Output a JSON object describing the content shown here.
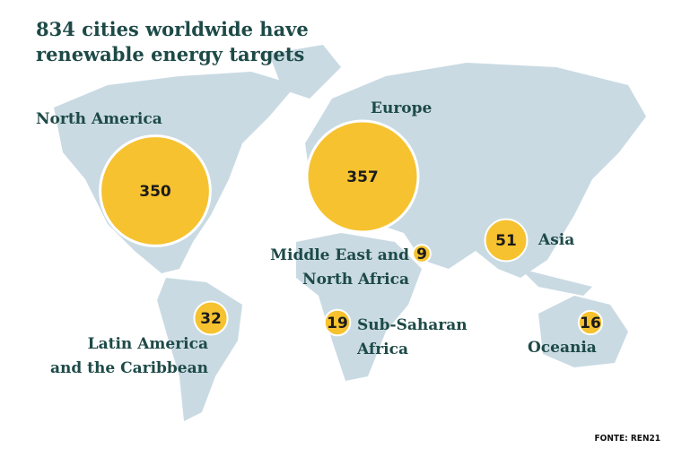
{
  "title_lines": [
    "834 cities worldwide have",
    "renewable energy targets"
  ],
  "regions": [
    {
      "label_lines": [
        "North America"
      ],
      "value": 350
    },
    {
      "label_lines": [
        "Europe"
      ],
      "value": 357
    },
    {
      "label_lines": [
        "Middle East and",
        "North Africa"
      ],
      "value": 9
    },
    {
      "label_lines": [
        "Asia"
      ],
      "value": 51
    },
    {
      "label_lines": [
        "Latin America",
        "and the Caribbean"
      ],
      "value": 32
    },
    {
      "label_lines": [
        "Sub-Saharan",
        "Africa"
      ],
      "value": 19
    },
    {
      "label_lines": [
        "Oceania"
      ],
      "value": 16
    }
  ],
  "source": "FONTE: REN21"
}
